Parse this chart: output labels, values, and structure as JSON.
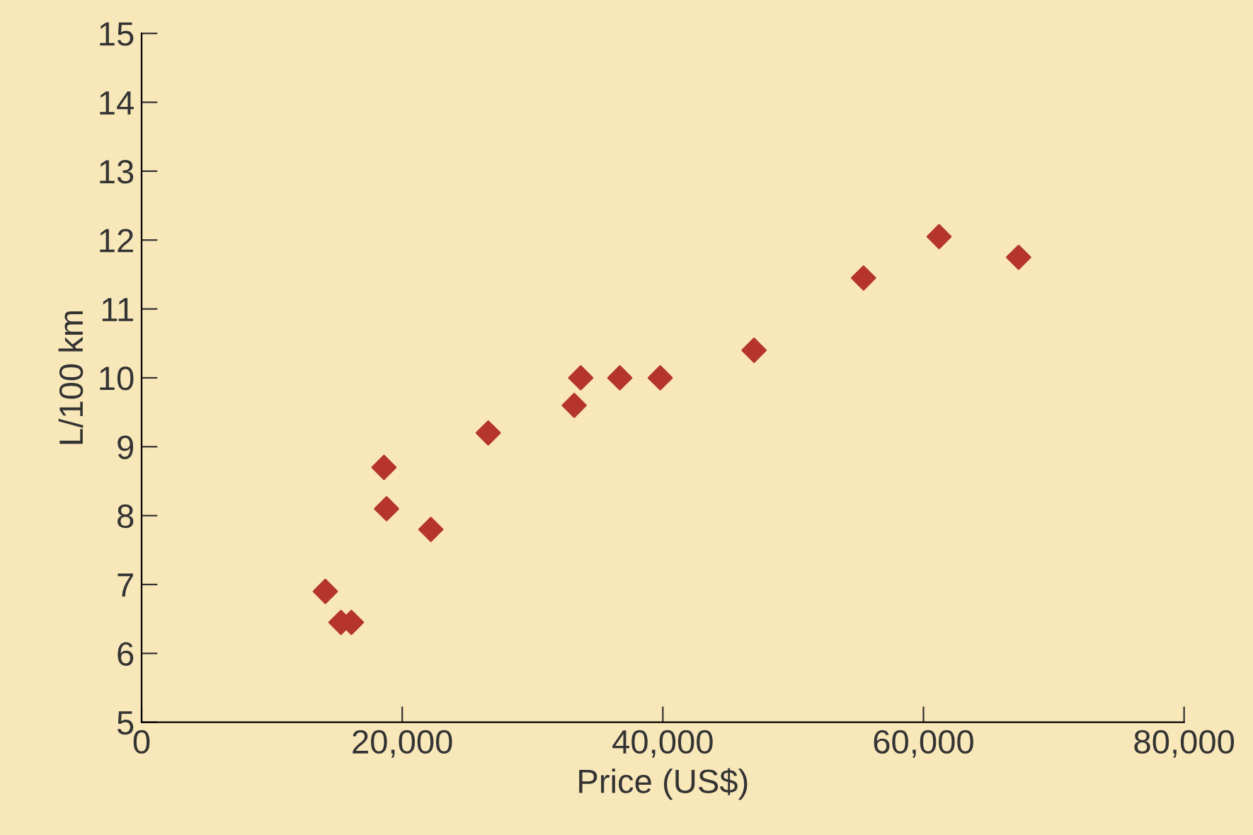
{
  "chart_data": {
    "type": "scatter",
    "xlabel": "Price (US$)",
    "ylabel": "L/100 km",
    "x": [
      14100,
      15300,
      16100,
      18600,
      18800,
      22200,
      26600,
      33200,
      33700,
      36700,
      39800,
      47000,
      55400,
      61200,
      67300
    ],
    "series": [
      {
        "color": "#b5352b",
        "values": [
          6.9,
          6.45,
          6.45,
          8.7,
          8.1,
          7.8,
          9.2,
          9.6,
          10.0,
          10.0,
          10.0,
          10.4,
          11.45,
          12.05,
          11.75
        ]
      }
    ],
    "marker": "diamond",
    "xlim": [
      0,
      80000
    ],
    "xticks": [
      0,
      {
        "value": 20000,
        "label": "20,000"
      },
      {
        "value": 40000,
        "label": "40,000"
      },
      {
        "value": 60000,
        "label": "60,000"
      },
      {
        "value": 80000,
        "label": "80,000"
      }
    ],
    "ylim": [
      5,
      15
    ],
    "yticks": [
      5,
      6,
      7,
      8,
      9,
      10,
      11,
      12,
      13,
      14,
      15
    ],
    "grid": false,
    "legend": false
  }
}
